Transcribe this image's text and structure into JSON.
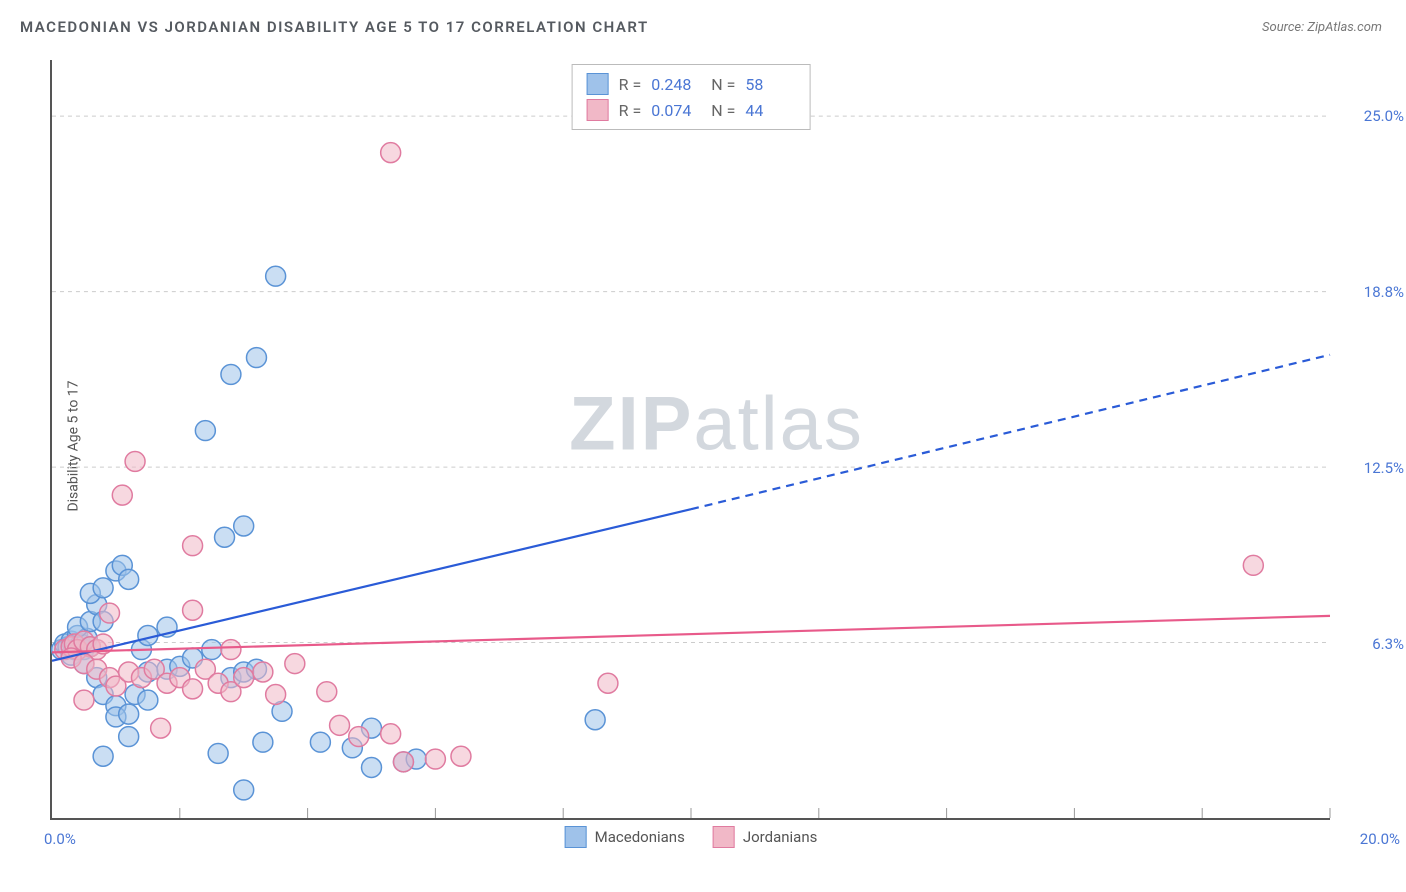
{
  "title": "MACEDONIAN VS JORDANIAN DISABILITY AGE 5 TO 17 CORRELATION CHART",
  "source_label": "Source: ZipAtlas.com",
  "ylabel": "Disability Age 5 to 17",
  "watermark_zip": "ZIP",
  "watermark_atlas": "atlas",
  "chart": {
    "type": "scatter",
    "xlim": [
      0,
      20
    ],
    "ylim": [
      0,
      27
    ],
    "xtick_step": 2,
    "ytick_step": 6.25,
    "ytick_labels": [
      "6.3%",
      "12.5%",
      "18.8%",
      "25.0%"
    ],
    "xlim_labels": [
      "0.0%",
      "20.0%"
    ],
    "grid_color": "#cccccc",
    "axis_color": "#555555",
    "background_color": "#ffffff",
    "label_color": "#4a76d4",
    "title_color": "#555a60",
    "series": [
      {
        "name": "Macedonians",
        "fill": "#9fc2ea",
        "stroke": "#5a93d6",
        "fill_opacity": 0.55,
        "marker_radius": 10,
        "R": "0.248",
        "N": "58",
        "trend": {
          "x1": 0,
          "y1": 5.6,
          "x2_solid": 10,
          "y2_solid": 11.0,
          "x2": 20,
          "y2": 16.5,
          "color": "#2a5bd7",
          "width": 2.2
        },
        "points": [
          [
            0.15,
            6.0
          ],
          [
            0.2,
            6.2
          ],
          [
            0.25,
            6.1
          ],
          [
            0.3,
            6.3
          ],
          [
            0.35,
            6.0
          ],
          [
            0.4,
            6.5
          ],
          [
            0.45,
            6.2
          ],
          [
            0.5,
            6.0
          ],
          [
            0.55,
            6.4
          ],
          [
            0.6,
            6.1
          ],
          [
            0.3,
            5.8
          ],
          [
            0.5,
            5.5
          ],
          [
            0.7,
            5.0
          ],
          [
            0.8,
            4.4
          ],
          [
            1.0,
            4.0
          ],
          [
            1.0,
            3.6
          ],
          [
            1.2,
            3.7
          ],
          [
            1.3,
            4.4
          ],
          [
            1.5,
            4.2
          ],
          [
            0.4,
            6.8
          ],
          [
            0.6,
            7.0
          ],
          [
            0.7,
            7.6
          ],
          [
            0.8,
            7.0
          ],
          [
            0.6,
            8.0
          ],
          [
            0.8,
            8.2
          ],
          [
            1.0,
            8.8
          ],
          [
            1.1,
            9.0
          ],
          [
            1.2,
            8.5
          ],
          [
            1.4,
            6.0
          ],
          [
            1.5,
            6.5
          ],
          [
            1.8,
            6.8
          ],
          [
            1.5,
            5.2
          ],
          [
            1.8,
            5.3
          ],
          [
            2.0,
            5.4
          ],
          [
            2.2,
            5.7
          ],
          [
            2.5,
            6.0
          ],
          [
            2.8,
            5.0
          ],
          [
            3.0,
            5.2
          ],
          [
            3.2,
            5.3
          ],
          [
            3.0,
            10.4
          ],
          [
            2.7,
            10.0
          ],
          [
            2.4,
            13.8
          ],
          [
            2.8,
            15.8
          ],
          [
            3.2,
            16.4
          ],
          [
            3.5,
            19.3
          ],
          [
            5.0,
            3.2
          ],
          [
            5.0,
            1.8
          ],
          [
            3.6,
            3.8
          ],
          [
            3.3,
            2.7
          ],
          [
            3.0,
            1.0
          ],
          [
            4.2,
            2.7
          ],
          [
            4.7,
            2.5
          ],
          [
            5.5,
            2.0
          ],
          [
            5.7,
            2.1
          ],
          [
            8.5,
            3.5
          ],
          [
            0.8,
            2.2
          ],
          [
            1.2,
            2.9
          ],
          [
            2.6,
            2.3
          ]
        ]
      },
      {
        "name": "Jordanians",
        "fill": "#f1b8c7",
        "stroke": "#e07ba0",
        "fill_opacity": 0.55,
        "marker_radius": 10,
        "R": "0.074",
        "N": "44",
        "trend": {
          "x1": 0,
          "y1": 5.9,
          "x2_solid": 20,
          "y2_solid": 7.2,
          "x2": 20,
          "y2": 7.2,
          "color": "#e85a8a",
          "width": 2.2
        },
        "points": [
          [
            0.2,
            6.0
          ],
          [
            0.3,
            6.1
          ],
          [
            0.35,
            6.2
          ],
          [
            0.4,
            6.0
          ],
          [
            0.5,
            6.3
          ],
          [
            0.6,
            6.1
          ],
          [
            0.7,
            6.0
          ],
          [
            0.8,
            6.2
          ],
          [
            0.3,
            5.7
          ],
          [
            0.5,
            5.5
          ],
          [
            0.7,
            5.3
          ],
          [
            0.9,
            5.0
          ],
          [
            1.0,
            4.7
          ],
          [
            1.2,
            5.2
          ],
          [
            1.4,
            5.0
          ],
          [
            1.6,
            5.3
          ],
          [
            1.8,
            4.8
          ],
          [
            2.0,
            5.0
          ],
          [
            2.2,
            4.6
          ],
          [
            2.4,
            5.3
          ],
          [
            2.6,
            4.8
          ],
          [
            2.8,
            4.5
          ],
          [
            3.0,
            5.0
          ],
          [
            3.3,
            5.2
          ],
          [
            3.5,
            4.4
          ],
          [
            3.8,
            5.5
          ],
          [
            4.3,
            4.5
          ],
          [
            4.5,
            3.3
          ],
          [
            4.8,
            2.9
          ],
          [
            5.3,
            3.0
          ],
          [
            5.5,
            2.0
          ],
          [
            6.0,
            2.1
          ],
          [
            6.4,
            2.2
          ],
          [
            8.7,
            4.8
          ],
          [
            0.9,
            7.3
          ],
          [
            1.1,
            11.5
          ],
          [
            1.3,
            12.7
          ],
          [
            2.2,
            9.7
          ],
          [
            2.2,
            7.4
          ],
          [
            2.8,
            6.0
          ],
          [
            5.3,
            23.7
          ],
          [
            18.8,
            9.0
          ],
          [
            0.5,
            4.2
          ],
          [
            1.7,
            3.2
          ]
        ]
      }
    ],
    "legend_series": [
      {
        "label": "Macedonians",
        "fill": "#9fc2ea",
        "stroke": "#5a93d6"
      },
      {
        "label": "Jordanians",
        "fill": "#f1b8c7",
        "stroke": "#e07ba0"
      }
    ]
  }
}
